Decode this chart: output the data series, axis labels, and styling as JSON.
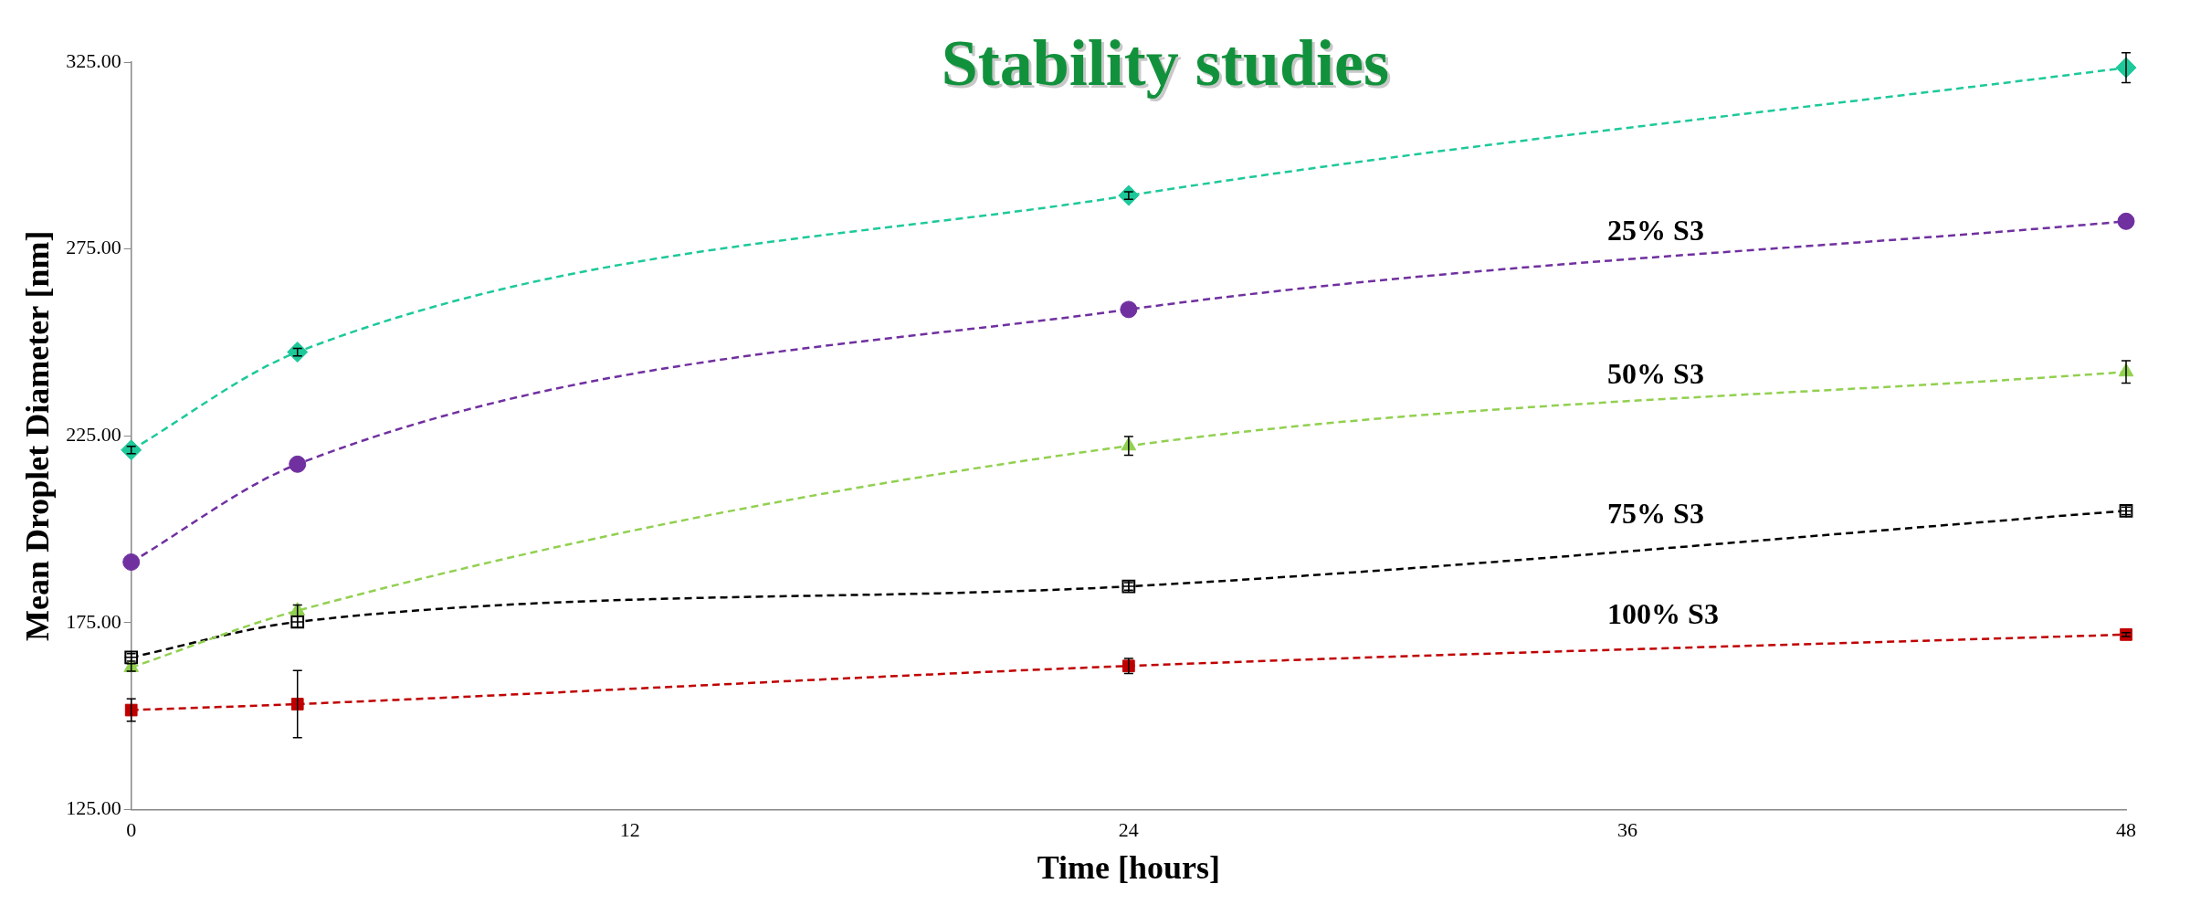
{
  "chart_data": {
    "type": "line",
    "title": "Stability studies",
    "xlabel": "Time [hours]",
    "ylabel": "Mean Droplet Diameter [nm]",
    "x": [
      0,
      4,
      24,
      48
    ],
    "xlim": [
      0,
      48
    ],
    "xticks": [
      0,
      12,
      24,
      36,
      48
    ],
    "ylim": [
      125,
      325
    ],
    "yticks": [
      {
        "value": 125,
        "label": "125.00"
      },
      {
        "value": 175,
        "label": "175.00"
      },
      {
        "value": 225,
        "label": "225.00"
      },
      {
        "value": 275,
        "label": "275.00"
      },
      {
        "value": 325,
        "label": "325.00"
      }
    ],
    "grid": false,
    "legend": false,
    "line_style": "dashed",
    "series": [
      {
        "color": "#1dc99a",
        "marker": "diamond",
        "values": [
          221.2,
          247.4,
          289.3,
          323.5
        ],
        "errors": [
          1,
          1,
          1,
          4
        ]
      },
      {
        "name": "25% S3",
        "color": "#7030a0",
        "marker": "circle",
        "values": [
          191.2,
          217.4,
          258.8,
          282.4
        ],
        "errors": [
          null,
          null,
          null,
          null
        ]
      },
      {
        "name": "50% S3",
        "color": "#92d050",
        "marker": "triangle",
        "values": [
          163,
          178.2,
          222.3,
          242.1
        ],
        "errors": [
          1,
          1.5,
          2.5,
          3
        ]
      },
      {
        "name": "75% S3",
        "color": "#000000",
        "marker": "square",
        "values": [
          165.7,
          175.2,
          184.7,
          204.9
        ],
        "errors": [
          1,
          1.5,
          1,
          1
        ]
      },
      {
        "name": "100% S3",
        "color": "#c00000",
        "marker": "square",
        "values": [
          151.6,
          153.2,
          163.4,
          171.8
        ],
        "errors": [
          3,
          9,
          2,
          0.5
        ]
      }
    ]
  }
}
